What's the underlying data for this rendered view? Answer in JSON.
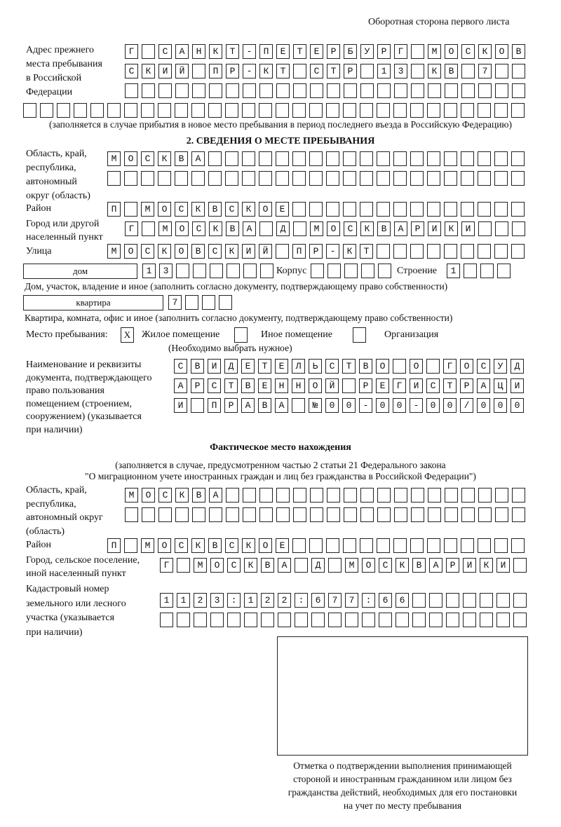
{
  "header": {
    "side_note": "Оборотная сторона первого листа"
  },
  "previous_address": {
    "label": "Адрес прежнего\nместа пребывания\nв Российской\nФедерации",
    "rows": [
      "Г САНКТ-ПЕТЕРБУРГ МОСКОВ",
      "СКИЙ ПР-КТ СТР 13 КВ 7",
      "",
      ""
    ],
    "note": "(заполняется в случае прибытия в новое место пребывания в период последнего въезда в Российскую Федерацию)"
  },
  "section2": {
    "title": "2. СВЕДЕНИЯ О МЕСТЕ ПРЕБЫВАНИЯ",
    "region_label": "Область, край,\nреспублика,\nавтономный\nокруг (область)",
    "region_rows": [
      "МОСКВА",
      ""
    ],
    "district_label": "Район",
    "district": "П МОСКВСКОЕ",
    "city_label": "Город или другой\nнаселенный пункт",
    "city": "Г МОСКВА Д МОСКВАРИКИ",
    "street_label": "Улица",
    "street": "МОСКОВСКИЙ ПР-КТ",
    "house_type": "дом",
    "house_number": "13",
    "korpus_label": "Корпус",
    "korpus": "",
    "building_label": "Строение",
    "building": "1",
    "house_caption": "Дом, участок, владение и иное (заполнить согласно документу, подтверждающему право собственности)",
    "apartment_type": "квартира",
    "apartment_number": "7",
    "apartment_caption": "Квартира, комната, офис и иное (заполнить согласно документу, подтверждающему право собственности)",
    "stay_place_label": "Место пребывания:",
    "stay_options": [
      {
        "label": "Жилое помещение",
        "mark": "X"
      },
      {
        "label": "Иное помещение",
        "mark": ""
      },
      {
        "label": "Организация",
        "mark": ""
      }
    ],
    "stay_hint": "(Необходимо выбрать нужное)",
    "document_label": "Наименование и реквизиты\nдокумента, подтверждающего\nправо пользования\nпомещением (строением,\nсооружением) (указывается\nпри наличии)",
    "document_rows": [
      "СВИДЕТЕЛЬСТВО О ГОСУД",
      "АРСТВЕННОЙ РЕГИСТРАЦИ",
      "И ПРАВА №00-00-00/000"
    ]
  },
  "actual": {
    "title": "Фактическое место нахождения",
    "note1": "(заполняется в случае, предусмотренном частью 2 статьи 21 Федерального закона",
    "note2": "\"О миграционном учете иностранных граждан и лиц без гражданства в Российской Федерации\")",
    "region_label": "Область, край,\nреспублика,\nавтономный округ\n(область)",
    "region_rows": [
      "МОСКВА",
      ""
    ],
    "district_label": "Район",
    "district": "П МОСКВСКОЕ",
    "city_label": "Город, сельское поселение,\nиной населенный пункт",
    "city": "Г МОСКВА Д МОСКВАРИКИ",
    "cadastral_label": "Кадастровый номер\nземельного или лесного\nучастка (указывается\nпри наличии)",
    "cadastral_rows": [
      "1123:122:677:66",
      ""
    ]
  },
  "stamp": {
    "caption": "Отметка о подтверждении выполнения принимающей\nстороной и иностранным гражданином или лицом без\nгражданства действий, необходимых для его постановки\nна учет по месту пребывания"
  }
}
